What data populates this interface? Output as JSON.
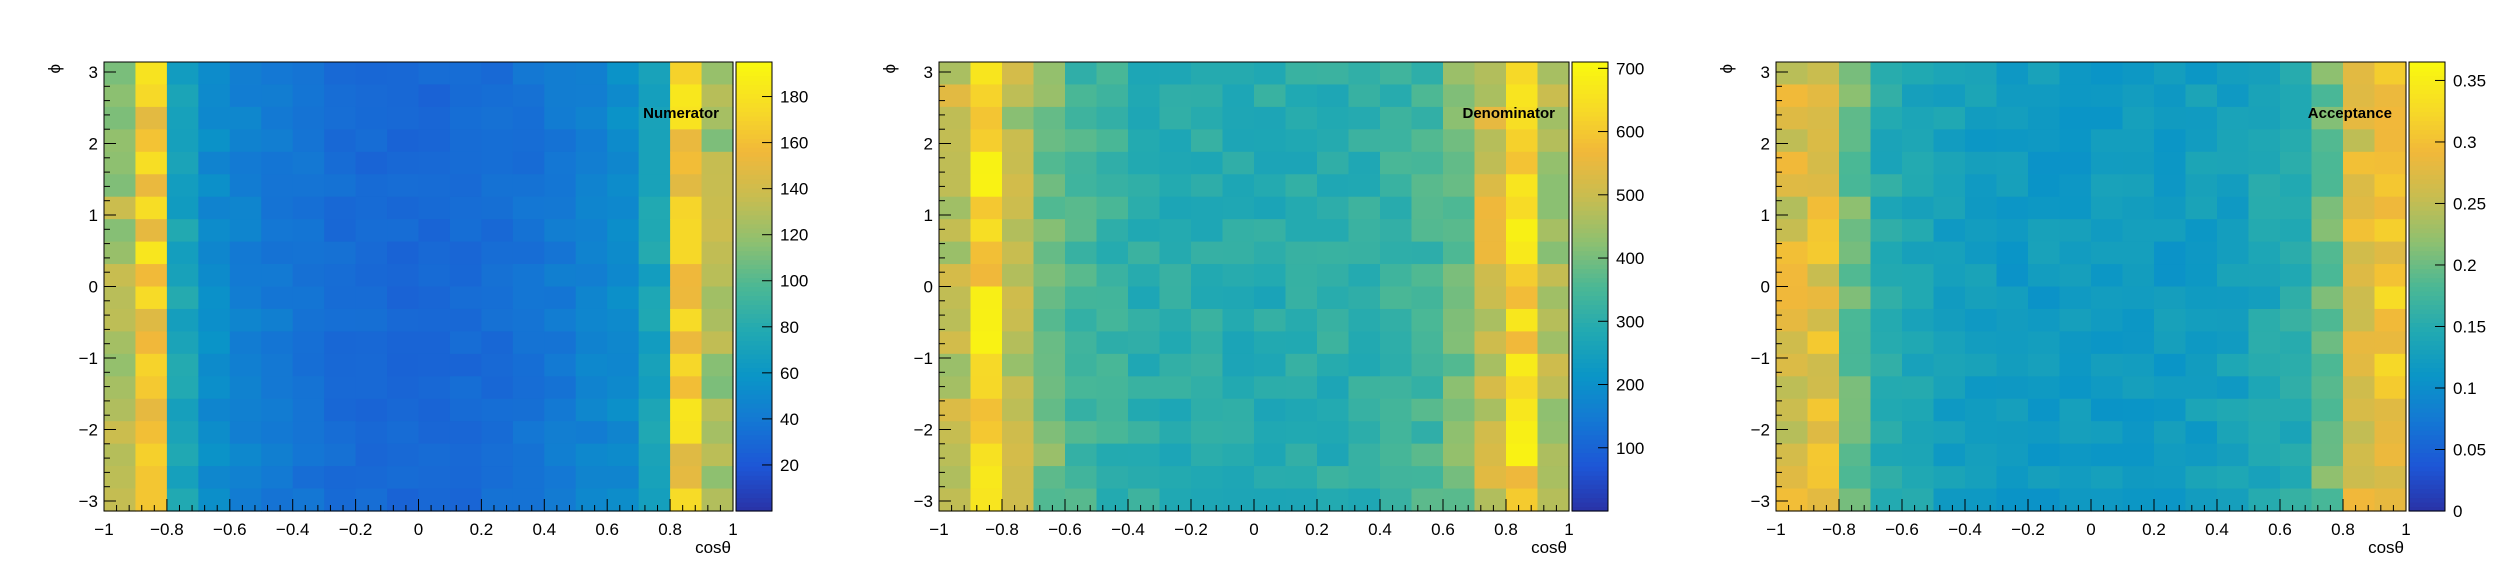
{
  "colors": {
    "palette": [
      "#2a32a6",
      "#1d56d6",
      "#1477d4",
      "#0a95c7",
      "#21a9b2",
      "#4bb895",
      "#8ec070",
      "#c8bd50",
      "#f1b83a",
      "#f7dc26",
      "#f9f90e"
    ]
  },
  "chart_data": [
    {
      "type": "heatmap",
      "title": "",
      "annotation": "Numerator",
      "xlabel": "cosθ",
      "ylabel": "ϕ",
      "xlim": [
        -1,
        1
      ],
      "ylim": [
        -3.14,
        3.14
      ],
      "x_ticks": [
        "−1",
        "−0.8",
        "−0.6",
        "−0.4",
        "−0.2",
        "0",
        "0.2",
        "0.4",
        "0.6",
        "0.8",
        "1"
      ],
      "y_ticks": [
        "−3",
        "−2",
        "−1",
        "0",
        "1",
        "2",
        "3"
      ],
      "zlim": [
        0,
        195
      ],
      "z_ticks": [
        "20",
        "40",
        "60",
        "80",
        "100",
        "120",
        "140",
        "160",
        "180"
      ],
      "z_tick_values": [
        20,
        40,
        60,
        80,
        100,
        120,
        140,
        160,
        180
      ],
      "x_bins": 20,
      "y_bins": 20,
      "edge_profile": [
        125,
        165,
        72,
        52,
        45,
        40,
        36,
        33,
        31,
        30,
        30,
        31,
        33,
        36,
        40,
        45,
        52,
        72,
        165,
        125
      ]
    },
    {
      "type": "heatmap",
      "title": "",
      "annotation": "Denominator",
      "xlabel": "cosθ",
      "ylabel": "ϕ",
      "xlim": [
        -1,
        1
      ],
      "ylim": [
        -3.14,
        3.14
      ],
      "x_ticks": [
        "−1",
        "−0.8",
        "−0.6",
        "−0.4",
        "−0.2",
        "0",
        "0.2",
        "0.4",
        "0.6",
        "0.8",
        "1"
      ],
      "y_ticks": [
        "−3",
        "−2",
        "−1",
        "0",
        "1",
        "2",
        "3"
      ],
      "zlim": [
        0,
        710
      ],
      "z_ticks": [
        "100",
        "200",
        "300",
        "400",
        "500",
        "600",
        "700"
      ],
      "z_tick_values": [
        100,
        200,
        300,
        400,
        500,
        600,
        700
      ],
      "x_bins": 20,
      "y_bins": 20,
      "edge_profile": [
        490,
        630,
        470,
        400,
        340,
        320,
        305,
        300,
        298,
        296,
        296,
        298,
        300,
        305,
        320,
        340,
        400,
        510,
        630,
        460
      ]
    },
    {
      "type": "heatmap",
      "title": "",
      "annotation": "Acceptance",
      "xlabel": "cosθ",
      "ylabel": "ϕ",
      "xlim": [
        -1,
        1
      ],
      "ylim": [
        -3.14,
        3.14
      ],
      "x_ticks": [
        "−1",
        "−0.8",
        "−0.6",
        "−0.4",
        "−0.2",
        "0",
        "0.2",
        "0.4",
        "0.6",
        "0.8",
        "1"
      ],
      "y_ticks": [
        "−3",
        "−2",
        "−1",
        "0",
        "1",
        "2",
        "3"
      ],
      "zlim": [
        0,
        0.365
      ],
      "z_ticks": [
        "0",
        "0.05",
        "0.1",
        "0.15",
        "0.2",
        "0.25",
        "0.3",
        "0.35"
      ],
      "z_tick_values": [
        0,
        0.05,
        0.1,
        0.15,
        0.2,
        0.25,
        0.3,
        0.35
      ],
      "x_bins": 20,
      "y_bins": 20,
      "edge_profile": [
        0.27,
        0.28,
        0.2,
        0.15,
        0.14,
        0.13,
        0.125,
        0.12,
        0.12,
        0.12,
        0.12,
        0.12,
        0.12,
        0.125,
        0.13,
        0.14,
        0.15,
        0.2,
        0.28,
        0.3
      ]
    }
  ]
}
